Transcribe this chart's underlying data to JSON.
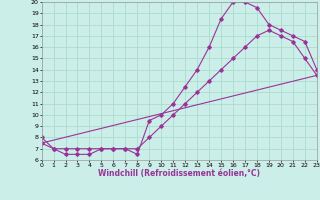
{
  "xlabel": "Windchill (Refroidissement éolien,°C)",
  "bg_color": "#cceee8",
  "grid_color": "#aaddcc",
  "line_color": "#993399",
  "xmin": 0,
  "xmax": 23,
  "ymin": 6,
  "ymax": 20,
  "line1_x": [
    0,
    1,
    2,
    3,
    4,
    5,
    6,
    7,
    8,
    9,
    10,
    11,
    12,
    13,
    14,
    15,
    16,
    17,
    18,
    19,
    20,
    21,
    22,
    23
  ],
  "line1_y": [
    8,
    7,
    6.5,
    6.5,
    6.5,
    7,
    7,
    7,
    6.5,
    9.5,
    10,
    11,
    12.5,
    14,
    16,
    18.5,
    20,
    20,
    19.5,
    18,
    17.5,
    17,
    16.5,
    14
  ],
  "line2_x": [
    0,
    1,
    2,
    3,
    4,
    5,
    6,
    7,
    8,
    9,
    10,
    11,
    12,
    13,
    14,
    15,
    16,
    17,
    18,
    19,
    20,
    21,
    22,
    23
  ],
  "line2_y": [
    7.5,
    7,
    7,
    7,
    7,
    7,
    7,
    7,
    7,
    8,
    9,
    10,
    11,
    12,
    13,
    14,
    15,
    16,
    17,
    17.5,
    17,
    16.5,
    15,
    13.5
  ],
  "line3_x": [
    0,
    23
  ],
  "line3_y": [
    7.5,
    13.5
  ],
  "yticks": [
    6,
    7,
    8,
    9,
    10,
    11,
    12,
    13,
    14,
    15,
    16,
    17,
    18,
    19,
    20
  ],
  "xticks": [
    0,
    1,
    2,
    3,
    4,
    5,
    6,
    7,
    8,
    9,
    10,
    11,
    12,
    13,
    14,
    15,
    16,
    17,
    18,
    19,
    20,
    21,
    22,
    23
  ],
  "tick_fontsize": 4.5,
  "xlabel_fontsize": 5.5
}
